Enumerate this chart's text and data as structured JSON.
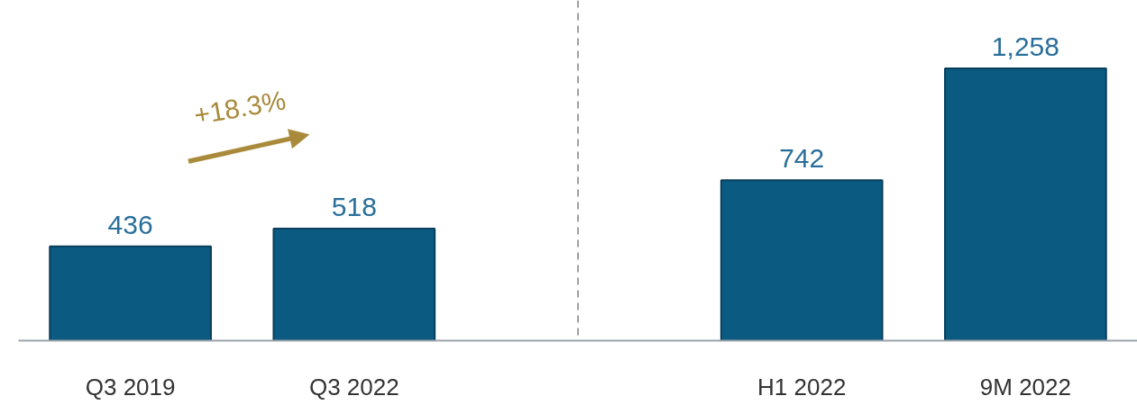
{
  "chart_data": {
    "type": "bar",
    "categories": [
      "Q3 2019",
      "Q3 2022",
      null,
      "H1 2022",
      "9M 2022"
    ],
    "values": [
      436,
      518,
      null,
      742,
      1258
    ],
    "color": "#0b5a82",
    "data_labels": true,
    "value_labels": [
      "436",
      "518",
      null,
      "742",
      "1,258"
    ],
    "annotations": [
      "+18.3%"
    ]
  }
}
